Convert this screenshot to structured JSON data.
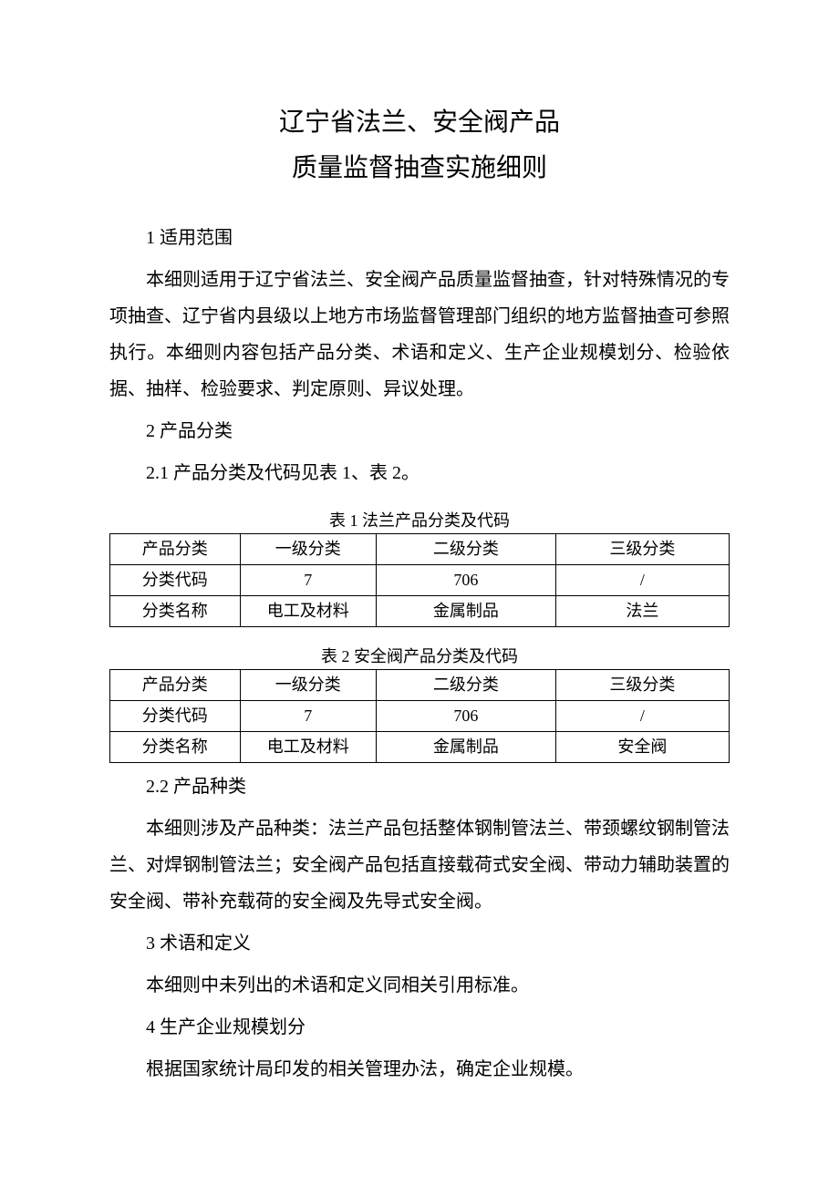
{
  "title_line1": "辽宁省法兰、安全阀产品",
  "title_line2": "质量监督抽查实施细则",
  "s1_heading": "1 适用范围",
  "s1_body": "本细则适用于辽宁省法兰、安全阀产品质量监督抽查，针对特殊情况的专项抽查、辽宁省内县级以上地方市场监督管理部门组织的地方监督抽查可参照执行。本细则内容包括产品分类、术语和定义、生产企业规模划分、检验依据、抽样、检验要求、判定原则、异议处理。",
  "s2_heading": "2 产品分类",
  "s2_1_line": "2.1 产品分类及代码见表 1、表 2。",
  "table1": {
    "caption": "表 1 法兰产品分类及代码",
    "rows": [
      [
        "产品分类",
        "一级分类",
        "二级分类",
        "三级分类"
      ],
      [
        "分类代码",
        "7",
        "706",
        "/"
      ],
      [
        "分类名称",
        "电工及材料",
        "金属制品",
        "法兰"
      ]
    ]
  },
  "table2": {
    "caption": "表 2 安全阀产品分类及代码",
    "rows": [
      [
        "产品分类",
        "一级分类",
        "二级分类",
        "三级分类"
      ],
      [
        "分类代码",
        "7",
        "706",
        "/"
      ],
      [
        "分类名称",
        "电工及材料",
        "金属制品",
        "安全阀"
      ]
    ]
  },
  "s2_2_heading": "2.2 产品种类",
  "s2_2_body": "本细则涉及产品种类：法兰产品包括整体钢制管法兰、带颈螺纹钢制管法兰、对焊钢制管法兰；安全阀产品包括直接载荷式安全阀、带动力辅助装置的安全阀、带补充载荷的安全阀及先导式安全阀。",
  "s3_heading": "3 术语和定义",
  "s3_body": "本细则中未列出的术语和定义同相关引用标准。",
  "s4_heading": "4 生产企业规模划分",
  "s4_body": "根据国家统计局印发的相关管理办法，确定企业规模。",
  "colors": {
    "text": "#000000",
    "background": "#ffffff",
    "border": "#000000"
  },
  "typography": {
    "title_fontsize": 28,
    "body_fontsize": 20,
    "table_fontsize": 18,
    "font_family": "SimSun"
  }
}
